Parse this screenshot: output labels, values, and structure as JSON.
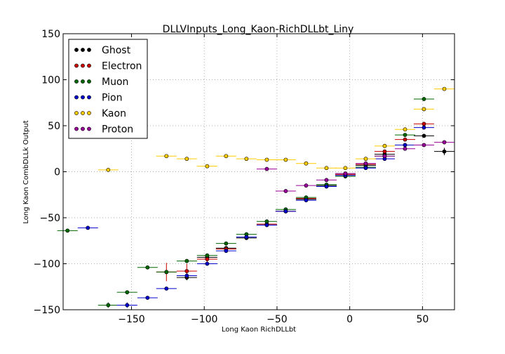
{
  "chart_data": {
    "type": "scatter",
    "title": "DLLVInputs_Long_Kaon-RichDLLbt_Liny",
    "xlabel": "Long Kaon RichDLLbt",
    "ylabel": "Long Kaon CombDLLk Output",
    "xlim": [
      -197,
      72
    ],
    "ylim": [
      -150,
      150
    ],
    "x_ticks": [
      -150,
      -100,
      -50,
      0,
      50
    ],
    "y_ticks": [
      -150,
      -100,
      -50,
      0,
      50,
      100,
      150
    ],
    "x_tick_labels": [
      "−150",
      "−100",
      "−50",
      "0",
      "50"
    ],
    "y_tick_labels": [
      "−150",
      "−100",
      "−50",
      "0",
      "50",
      "100",
      "150"
    ],
    "grid": true,
    "legend_position": "top-left",
    "bin_half_width": 7,
    "series": [
      {
        "name": "Ghost",
        "color": "#000000",
        "points": [
          {
            "x": -112,
            "y": -115,
            "yerr": 3
          },
          {
            "x": -98,
            "y": -93,
            "yerr": 2
          },
          {
            "x": -85,
            "y": -83,
            "yerr": 2
          },
          {
            "x": -71,
            "y": -72,
            "yerr": 1
          },
          {
            "x": -57,
            "y": -57,
            "yerr": 1
          },
          {
            "x": -44,
            "y": -43,
            "yerr": 1
          },
          {
            "x": -30,
            "y": -30,
            "yerr": 1
          },
          {
            "x": -16,
            "y": -15,
            "yerr": 1
          },
          {
            "x": -3,
            "y": -2,
            "yerr": 1
          },
          {
            "x": 11,
            "y": 7,
            "yerr": 1
          },
          {
            "x": 24,
            "y": 19,
            "yerr": 1
          },
          {
            "x": 38,
            "y": 29,
            "yerr": 1
          },
          {
            "x": 51,
            "y": 39,
            "yerr": 1
          },
          {
            "x": 65,
            "y": 22,
            "yerr": 4
          }
        ]
      },
      {
        "name": "Electron",
        "color": "#cc0000",
        "points": [
          {
            "x": -126,
            "y": -109,
            "yerr": 10
          },
          {
            "x": -112,
            "y": -108,
            "yerr": 8
          },
          {
            "x": -98,
            "y": -95,
            "yerr": 3
          },
          {
            "x": -85,
            "y": -84,
            "yerr": 2
          },
          {
            "x": -71,
            "y": -71,
            "yerr": 1
          },
          {
            "x": -57,
            "y": -57,
            "yerr": 1
          },
          {
            "x": -44,
            "y": -43,
            "yerr": 1
          },
          {
            "x": -30,
            "y": -29,
            "yerr": 1
          },
          {
            "x": -16,
            "y": -16,
            "yerr": 1
          },
          {
            "x": -3,
            "y": -3,
            "yerr": 1
          },
          {
            "x": 11,
            "y": 8,
            "yerr": 1
          },
          {
            "x": 24,
            "y": 22,
            "yerr": 1
          },
          {
            "x": 38,
            "y": 35,
            "yerr": 1
          },
          {
            "x": 51,
            "y": 52,
            "yerr": 2
          }
        ]
      },
      {
        "name": "Muon",
        "color": "#006600",
        "points": [
          {
            "x": -194,
            "y": -64,
            "yerr": 1
          },
          {
            "x": -166,
            "y": -145,
            "yerr": 3
          },
          {
            "x": -153,
            "y": -131,
            "yerr": 1
          },
          {
            "x": -139,
            "y": -104,
            "yerr": 1
          },
          {
            "x": -126,
            "y": -109,
            "yerr": 1
          },
          {
            "x": -112,
            "y": -97,
            "yerr": 1
          },
          {
            "x": -98,
            "y": -91,
            "yerr": 1
          },
          {
            "x": -85,
            "y": -78,
            "yerr": 1
          },
          {
            "x": -71,
            "y": -68,
            "yerr": 1
          },
          {
            "x": -57,
            "y": -54,
            "yerr": 1
          },
          {
            "x": -44,
            "y": -41,
            "yerr": 1
          },
          {
            "x": -30,
            "y": -28,
            "yerr": 1
          },
          {
            "x": -16,
            "y": -14,
            "yerr": 1
          },
          {
            "x": -3,
            "y": -5,
            "yerr": 1
          },
          {
            "x": 11,
            "y": 5,
            "yerr": 1
          },
          {
            "x": 24,
            "y": 17,
            "yerr": 1
          },
          {
            "x": 38,
            "y": 40,
            "yerr": 1
          },
          {
            "x": 51,
            "y": 79,
            "yerr": 2
          }
        ]
      },
      {
        "name": "Pion",
        "color": "#0000cc",
        "points": [
          {
            "x": -180,
            "y": -61,
            "yerr": 1
          },
          {
            "x": -153,
            "y": -145,
            "yerr": 3
          },
          {
            "x": -139,
            "y": -137,
            "yerr": 1
          },
          {
            "x": -126,
            "y": -127,
            "yerr": 1
          },
          {
            "x": -112,
            "y": -113,
            "yerr": 1
          },
          {
            "x": -98,
            "y": -100,
            "yerr": 1
          },
          {
            "x": -85,
            "y": -86,
            "yerr": 1
          },
          {
            "x": -71,
            "y": -71,
            "yerr": 1
          },
          {
            "x": -57,
            "y": -58,
            "yerr": 1
          },
          {
            "x": -44,
            "y": -43,
            "yerr": 1
          },
          {
            "x": -30,
            "y": -31,
            "yerr": 1
          },
          {
            "x": -16,
            "y": -16,
            "yerr": 1
          },
          {
            "x": -3,
            "y": -4,
            "yerr": 1
          },
          {
            "x": 11,
            "y": 4,
            "yerr": 1
          },
          {
            "x": 24,
            "y": 14,
            "yerr": 1
          },
          {
            "x": 38,
            "y": 29,
            "yerr": 1
          },
          {
            "x": 51,
            "y": 48,
            "yerr": 1
          }
        ]
      },
      {
        "name": "Kaon",
        "color": "#ffcc00",
        "points": [
          {
            "x": -166,
            "y": 2,
            "yerr": 1
          },
          {
            "x": -126,
            "y": 17,
            "yerr": 1
          },
          {
            "x": -112,
            "y": 14,
            "yerr": 1
          },
          {
            "x": -98,
            "y": 6,
            "yerr": 1
          },
          {
            "x": -85,
            "y": 17,
            "yerr": 1
          },
          {
            "x": -71,
            "y": 14,
            "yerr": 1
          },
          {
            "x": -57,
            "y": 13,
            "yerr": 1
          },
          {
            "x": -44,
            "y": 13,
            "yerr": 1
          },
          {
            "x": -30,
            "y": 9,
            "yerr": 1
          },
          {
            "x": -16,
            "y": 4,
            "yerr": 1
          },
          {
            "x": -3,
            "y": 4,
            "yerr": 1
          },
          {
            "x": 11,
            "y": 14,
            "yerr": 1
          },
          {
            "x": 24,
            "y": 28,
            "yerr": 1
          },
          {
            "x": 38,
            "y": 46,
            "yerr": 1
          },
          {
            "x": 51,
            "y": 68,
            "yerr": 1
          },
          {
            "x": 65,
            "y": 90,
            "yerr": 1
          }
        ]
      },
      {
        "name": "Proton",
        "color": "#990099",
        "points": [
          {
            "x": -57,
            "y": 3,
            "yerr": 1
          },
          {
            "x": -44,
            "y": -21,
            "yerr": 1
          },
          {
            "x": -30,
            "y": -15,
            "yerr": 1
          },
          {
            "x": -16,
            "y": -9,
            "yerr": 1
          },
          {
            "x": -3,
            "y": -2,
            "yerr": 1
          },
          {
            "x": 11,
            "y": 9,
            "yerr": 1
          },
          {
            "x": 24,
            "y": 17,
            "yerr": 1
          },
          {
            "x": 38,
            "y": 25,
            "yerr": 1
          },
          {
            "x": 51,
            "y": 29,
            "yerr": 1
          },
          {
            "x": 65,
            "y": 32,
            "yerr": 1
          }
        ]
      }
    ]
  }
}
